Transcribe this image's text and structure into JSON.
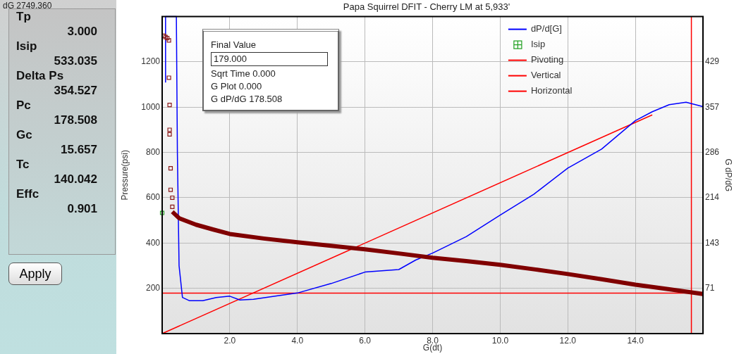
{
  "chart_data": [
    {
      "type": "other",
      "annotations": [
        "dG 2749.360",
        "Tp",
        "3.000",
        "Isip",
        "533.035",
        "Delta Ps",
        "354.527",
        "Pc",
        "178.508",
        "Gc",
        "15.657",
        "Tc",
        "140.042",
        "Effc",
        "0.901",
        "Apply"
      ]
    },
    {
      "type": "line",
      "title": "Papa Squirrel DFIT - Cherry LM at 5,933'",
      "xlabel": "G(dt)",
      "ylabel": "Pressure(psi)",
      "y2label": "G dP/dG",
      "xlim": [
        0,
        16
      ],
      "xticks": [
        {
          "value": 2,
          "label": "2.0"
        },
        {
          "value": 4,
          "label": "4.0"
        },
        {
          "value": 6,
          "label": "6.0"
        },
        {
          "value": 8,
          "label": "8.0"
        },
        {
          "value": 10,
          "label": "10.0"
        },
        {
          "value": 12,
          "label": "12.0"
        },
        {
          "value": 14,
          "label": "14.0"
        }
      ],
      "ylim": [
        0,
        1400
      ],
      "yticks": [
        200,
        400,
        600,
        800,
        1000,
        1200
      ],
      "y2lim": [
        0,
        500
      ],
      "y2ticks": [
        {
          "value": 71.4,
          "label": "71"
        },
        {
          "value": 142.9,
          "label": "143"
        },
        {
          "value": 214.3,
          "label": "214"
        },
        {
          "value": 285.7,
          "label": "286"
        },
        {
          "value": 357.1,
          "label": "357"
        },
        {
          "value": 428.6,
          "label": "429"
        }
      ],
      "grid": true,
      "legend": "top right",
      "annotations": [
        "Final Value",
        "179.000",
        "Sqrt Time 0.000",
        "G Plot 0.000",
        "G dP/dG 178.508"
      ],
      "series": [
        {
          "type": "scatter",
          "color": "#8b1a1a",
          "marker": "square",
          "x": [
            0.05,
            0.1,
            0.15,
            0.2,
            0.2,
            0.22,
            0.22,
            0.22,
            0.25,
            0.25,
            0.3,
            0.3
          ],
          "values": [
            1315,
            1310,
            1305,
            1295,
            1130,
            1010,
            900,
            880,
            730,
            635,
            600,
            560
          ]
        },
        {
          "type": "line",
          "color": "#800000",
          "marker": "none",
          "x": [
            0.3,
            0.5,
            1,
            1.5,
            2,
            3,
            4,
            5,
            6,
            7,
            8,
            9,
            10,
            11,
            12,
            13,
            14,
            15,
            16
          ],
          "values": [
            538,
            510,
            481,
            460,
            440,
            420,
            403,
            388,
            372,
            354,
            335,
            320,
            304,
            284,
            263,
            240,
            216,
            196,
            175
          ]
        },
        {
          "name": "dP/d[G]",
          "type": "line",
          "color": "#0000ff",
          "marker": "none",
          "axis": "y2",
          "x": [
            0.1,
            0.1,
            0.42,
            0.45,
            0.5,
            0.6,
            0.8,
            1.2,
            1.6,
            2,
            2.3,
            2.7,
            3.2,
            4,
            5,
            6,
            7,
            7.5,
            8,
            9,
            10,
            11,
            12,
            13,
            14,
            14.5,
            15,
            15.5,
            16
          ],
          "values": [
            396,
            500,
            500,
            286,
            107,
            57,
            52,
            52,
            57,
            59,
            53,
            54,
            58,
            64,
            79,
            97,
            101,
            116,
            127,
            153,
            187,
            220,
            261,
            291,
            336,
            350,
            361,
            365,
            358
          ]
        },
        {
          "name": "Isip",
          "type": "scatter",
          "color": "#22a022",
          "marker": "square",
          "x": [
            0
          ],
          "values": [
            533
          ]
        },
        {
          "name": "Pivoting",
          "type": "line",
          "color": "#ff0000",
          "marker": "none",
          "axis": "y2",
          "x": [
            0,
            14.5
          ],
          "values": [
            0,
            345
          ]
        },
        {
          "name": "Vertical",
          "type": "line",
          "color": "#ff0000",
          "marker": "none",
          "x": [
            15.657,
            15.657
          ],
          "values": [
            0,
            1400
          ]
        },
        {
          "name": "Horizontal",
          "type": "line",
          "color": "#ff0000",
          "marker": "none",
          "x": [
            0,
            16
          ],
          "values": [
            179,
            179
          ]
        }
      ]
    }
  ]
}
